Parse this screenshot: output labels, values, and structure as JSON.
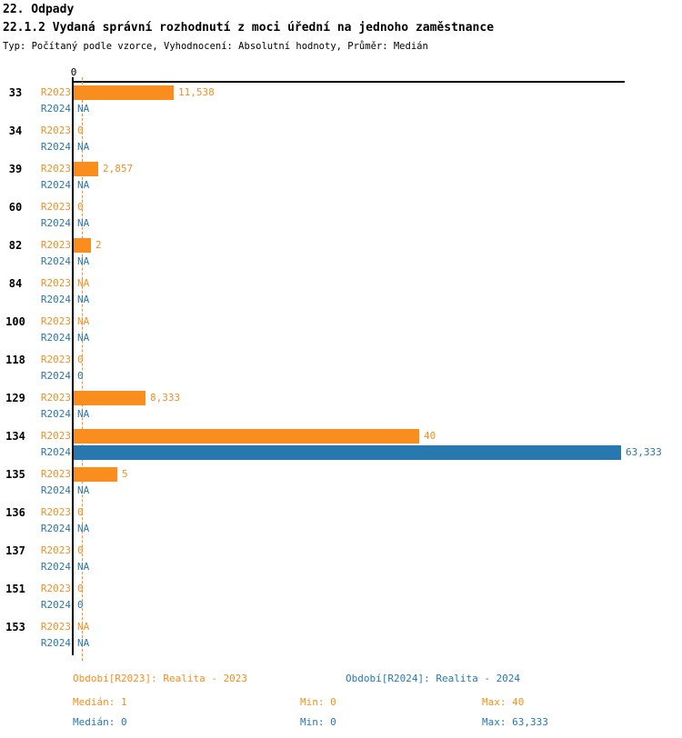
{
  "header": {
    "chapter": "22. Odpady",
    "title": "22.1.2 Vydaná správní rozhodnutí z moci úřední na jednoho zaměstnance",
    "subtitle": "Typ: Počítaný podle vzorce, Vyhodnocení: Absolutní hodnoty, Průměr: Medián"
  },
  "chart_data": {
    "type": "bar",
    "orientation": "horizontal",
    "title": "22.1.2 Vydaná správní rozhodnutí z moci úřední na jednoho zaměstnance",
    "categories": [
      "33",
      "34",
      "39",
      "60",
      "82",
      "84",
      "100",
      "118",
      "129",
      "134",
      "135",
      "136",
      "137",
      "151",
      "153"
    ],
    "series": [
      {
        "name": "R2023",
        "color": "#F98E1F",
        "values": [
          11.538,
          0,
          2.857,
          0,
          2,
          null,
          null,
          0,
          8.333,
          40,
          5,
          0,
          0,
          0,
          null
        ],
        "labels": [
          "11,538",
          "0",
          "2,857",
          "0",
          "2",
          "NA",
          "NA",
          "0",
          "8,333",
          "40",
          "5",
          "0",
          "0",
          "0",
          "NA"
        ]
      },
      {
        "name": "R2024",
        "color": "#2878B0",
        "values": [
          null,
          null,
          null,
          null,
          null,
          null,
          null,
          0,
          null,
          63.333,
          null,
          null,
          null,
          0,
          null
        ],
        "labels": [
          "NA",
          "NA",
          "NA",
          "NA",
          "NA",
          "NA",
          "NA",
          "0",
          "NA",
          "63,333",
          "NA",
          "NA",
          "NA",
          "0",
          "NA"
        ]
      }
    ],
    "axis": {
      "zero_label": "0",
      "xmin": 0,
      "xmax": 63.333,
      "grid": false
    },
    "median_line": {
      "series": "R2023",
      "value": 1
    },
    "legend_position": "bottom",
    "legend": [
      {
        "label": "Období[R2023]: Realita - 2023",
        "color": "#F98E1F"
      },
      {
        "label": "Období[R2024]: Realita - 2024",
        "color": "#2878B0"
      }
    ],
    "stats": [
      {
        "median": "Medián: 1",
        "min": "Min: 0",
        "max": "Max: 40",
        "color": "#F98E1F"
      },
      {
        "median": "Medián: 0",
        "min": "Min: 0",
        "max": "Max: 63,333",
        "color": "#2878B0"
      }
    ]
  }
}
